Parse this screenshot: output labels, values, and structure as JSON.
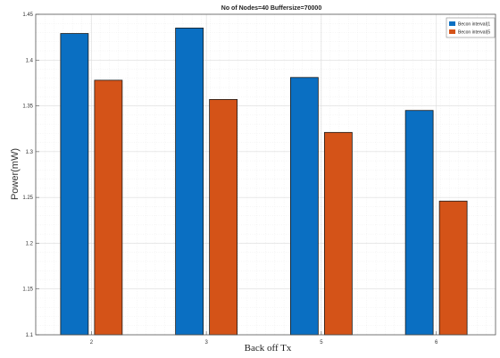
{
  "chart_data": {
    "type": "bar",
    "title": "No of Nodes=40 Buffersize=70000",
    "xlabel": "Back off Tx",
    "ylabel": "Power(mW)",
    "categories": [
      "2",
      "3",
      "5",
      "6"
    ],
    "ylim": [
      1.1,
      1.45
    ],
    "yticks": [
      "1.1",
      "1.15",
      "1.2",
      "1.25",
      "1.3",
      "1.35",
      "1.4",
      "1.45"
    ],
    "grid": true,
    "legend_position": "top-right",
    "series": [
      {
        "name": "Becon interval(1",
        "color": "#0a6fc2",
        "values": [
          1.429,
          1.435,
          1.381,
          1.345
        ]
      },
      {
        "name": "Becon interval(5",
        "color": "#d45318",
        "values": [
          1.378,
          1.357,
          1.321,
          1.246
        ]
      }
    ]
  }
}
